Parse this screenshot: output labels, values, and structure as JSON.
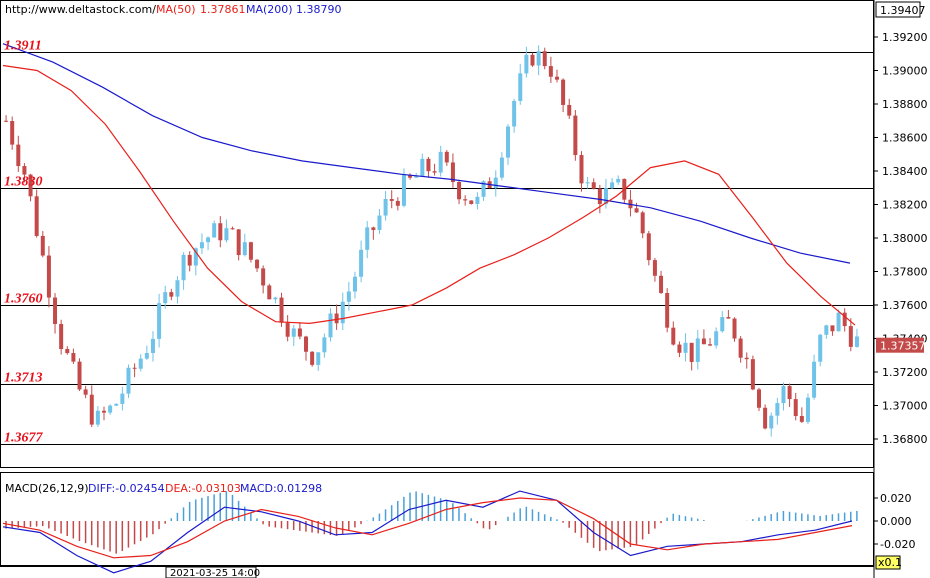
{
  "header": {
    "source_url": "http://www.deltastock.com/",
    "ma50_label": "MA(50)",
    "ma50_value": "1.37861",
    "ma200_label": "MA(200)",
    "ma200_value": "1.38790"
  },
  "price_axis": {
    "top_box": "1.39407",
    "current_box": "1.37357",
    "ticks": [
      "1.39200",
      "1.39000",
      "1.38800",
      "1.38600",
      "1.38400",
      "1.38200",
      "1.38000",
      "1.37800",
      "1.37600",
      "1.37400",
      "1.37200",
      "1.37000",
      "1.36800"
    ]
  },
  "levels": [
    {
      "label": "1.3911",
      "value": 1.3911
    },
    {
      "label": "1.3830",
      "value": 1.383
    },
    {
      "label": "1.3760",
      "value": 1.376
    },
    {
      "label": "1.3713",
      "value": 1.3713
    },
    {
      "label": "1.3677",
      "value": 1.3677
    }
  ],
  "macd_header": {
    "title": "MACD(26,12,9)",
    "diff": "DIFF:-0.02454",
    "dea": "DEA:-0.03103",
    "macd": "MACD:0.01298"
  },
  "macd_axis": {
    "ticks": [
      "0.020",
      "0.000",
      "-0.020"
    ],
    "zoom_box": "x0.1"
  },
  "time_axis": {
    "cursor_label": "2021-03-25 14:00"
  },
  "colors": {
    "up_candle": "#6fc3e8",
    "down_candle": "#c44a4a",
    "ma50": "#e8201a",
    "ma200": "#1a1acc",
    "level_line": "#000000",
    "macd_bar": "#4aa0d8",
    "macd_bar_neg": "#c44a4a",
    "diff_line": "#1a1acc",
    "dea_line": "#e8201a"
  },
  "chart_data": {
    "type": "candlestick",
    "price_range": [
      1.3662,
      1.3942
    ],
    "ma50": [
      1.3903,
      1.39,
      1.3888,
      1.3868,
      1.384,
      1.381,
      1.3782,
      1.3762,
      1.375,
      1.3749,
      1.3752,
      1.3756,
      1.376,
      1.377,
      1.3782,
      1.379,
      1.38,
      1.3812,
      1.3825,
      1.3842,
      1.3846,
      1.3838,
      1.3812,
      1.3785,
      1.3765,
      1.3748
    ],
    "ma200": [
      1.3916,
      1.3905,
      1.389,
      1.3873,
      1.386,
      1.3852,
      1.3846,
      1.3842,
      1.3838,
      1.3835,
      1.3831,
      1.3827,
      1.3823,
      1.3818,
      1.381,
      1.38,
      1.3791,
      1.3785
    ],
    "close": [
      1.387,
      1.384,
      1.379,
      1.374,
      1.371,
      1.369,
      1.37,
      1.372,
      1.374,
      1.377,
      1.379,
      1.38,
      1.3805,
      1.3795,
      1.378,
      1.376,
      1.374,
      1.373,
      1.375,
      1.377,
      1.38,
      1.382,
      1.383,
      1.384,
      1.3845,
      1.383,
      1.382,
      1.384,
      1.388,
      1.391,
      1.3905,
      1.387,
      1.383,
      1.3825,
      1.383,
      1.381,
      1.377,
      1.374,
      1.373,
      1.374,
      1.375,
      1.3725,
      1.369,
      1.371,
      1.369,
      1.374,
      1.3752,
      1.3738
    ],
    "macd": {
      "range": [
        -0.05,
        0.032
      ],
      "diff": [
        -0.005,
        -0.01,
        -0.03,
        -0.045,
        -0.035,
        -0.01,
        0.012,
        0.008,
        0.0,
        -0.012,
        -0.01,
        0.01,
        0.018,
        0.012,
        0.026,
        0.018,
        -0.01,
        -0.03,
        -0.022,
        -0.02,
        -0.018,
        -0.012,
        -0.008,
        0.0
      ],
      "dea": [
        -0.002,
        -0.008,
        -0.022,
        -0.032,
        -0.03,
        -0.018,
        0.0,
        0.01,
        0.004,
        -0.006,
        -0.012,
        -0.002,
        0.01,
        0.016,
        0.02,
        0.018,
        0.002,
        -0.02,
        -0.025,
        -0.02,
        -0.018,
        -0.016,
        -0.01,
        -0.004
      ]
    }
  }
}
